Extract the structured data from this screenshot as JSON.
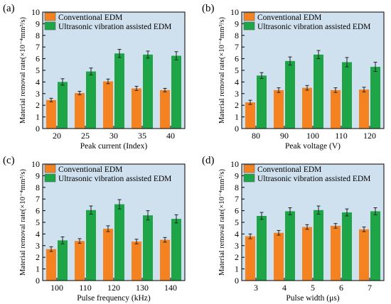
{
  "colors": {
    "plot_bg": "#cfe0ee",
    "conventional": "#f58220",
    "ultrasonic": "#1ea547",
    "error_bar": "#222222",
    "axis": "#000000"
  },
  "legend": {
    "series1": "Conventional EDM",
    "series2": "Ultrasonic vibration assisted EDM"
  },
  "ylabel": "Material removal rate(×10⁻⁴mm³/s)",
  "chart_data": [
    {
      "panel_label": "(a)",
      "type": "bar",
      "xlabel": "Peak current (Index)",
      "ylabel": "Material removal rate(×10⁻⁴mm³/s)",
      "categories": [
        "20",
        "25",
        "30",
        "35",
        "40"
      ],
      "ylim": [
        0,
        10
      ],
      "yticks": [
        "0",
        "1",
        "2",
        "3",
        "4",
        "5",
        "6",
        "7",
        "8",
        "9",
        "10"
      ],
      "legend_position": "top-left",
      "series": [
        {
          "name": "Conventional EDM",
          "values": [
            2.45,
            3.05,
            4.05,
            3.45,
            3.3
          ],
          "errors": [
            0.15,
            0.15,
            0.2,
            0.18,
            0.15
          ]
        },
        {
          "name": "Ultrasonic vibration assisted EDM",
          "values": [
            4.0,
            4.9,
            6.45,
            6.35,
            6.25
          ],
          "errors": [
            0.28,
            0.3,
            0.35,
            0.3,
            0.35
          ]
        }
      ]
    },
    {
      "panel_label": "(b)",
      "type": "bar",
      "xlabel": "Peak voltage (V)",
      "ylabel": "Material removal rate(×10⁻⁴mm³/s)",
      "categories": [
        "80",
        "90",
        "100",
        "110",
        "120"
      ],
      "ylim": [
        0,
        10
      ],
      "yticks": [
        "0",
        "1",
        "2",
        "3",
        "4",
        "5",
        "6",
        "7",
        "8",
        "9",
        "10"
      ],
      "legend_position": "top-left",
      "series": [
        {
          "name": "Conventional EDM",
          "values": [
            2.25,
            3.3,
            3.5,
            3.3,
            3.35
          ],
          "errors": [
            0.18,
            0.2,
            0.2,
            0.2,
            0.2
          ]
        },
        {
          "name": "Ultrasonic vibration assisted EDM",
          "values": [
            4.55,
            5.8,
            6.35,
            5.7,
            5.3
          ],
          "errors": [
            0.25,
            0.35,
            0.35,
            0.4,
            0.4
          ]
        }
      ]
    },
    {
      "panel_label": "(c)",
      "type": "bar",
      "xlabel": "Pulse frequency (kHz)",
      "ylabel": "Material removal rate(×10⁻⁴mm³/s)",
      "categories": [
        "100",
        "110",
        "120",
        "130",
        "140"
      ],
      "ylim": [
        0,
        10
      ],
      "yticks": [
        "0",
        "1",
        "2",
        "3",
        "4",
        "5",
        "6",
        "7",
        "8",
        "9",
        "10"
      ],
      "legend_position": "top-left",
      "series": [
        {
          "name": "Conventional EDM",
          "values": [
            2.7,
            3.4,
            4.45,
            3.35,
            3.5
          ],
          "errors": [
            0.2,
            0.2,
            0.25,
            0.2,
            0.2
          ]
        },
        {
          "name": "Ultrasonic vibration assisted EDM",
          "values": [
            3.45,
            6.05,
            6.55,
            5.6,
            5.3
          ],
          "errors": [
            0.3,
            0.35,
            0.4,
            0.4,
            0.35
          ]
        }
      ]
    },
    {
      "panel_label": "(d)",
      "type": "bar",
      "xlabel": "Pulse width (μs)",
      "ylabel": "Material removal rate(×10⁻⁴mm³/s)",
      "categories": [
        "3",
        "4",
        "5",
        "6",
        "7"
      ],
      "ylim": [
        0,
        10
      ],
      "yticks": [
        "0",
        "1",
        "2",
        "3",
        "4",
        "5",
        "6",
        "7",
        "8",
        "9",
        "10"
      ],
      "legend_position": "top-left",
      "series": [
        {
          "name": "Conventional EDM",
          "values": [
            3.8,
            4.1,
            4.6,
            4.7,
            4.4
          ],
          "errors": [
            0.2,
            0.2,
            0.2,
            0.2,
            0.2
          ]
        },
        {
          "name": "Ultrasonic vibration assisted EDM",
          "values": [
            5.55,
            5.95,
            6.05,
            5.85,
            5.95
          ],
          "errors": [
            0.3,
            0.3,
            0.35,
            0.3,
            0.3
          ]
        }
      ]
    }
  ]
}
